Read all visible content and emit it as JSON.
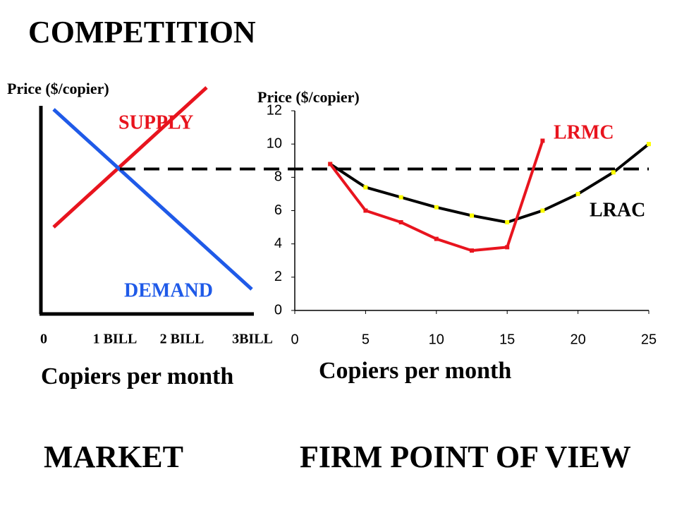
{
  "title": "COMPETITION",
  "market": {
    "y_label": "Price ($/copier)",
    "x_label": "Copiers per month",
    "x_labels": [
      "0",
      "1 BILL",
      "2 BILL",
      "3BILL"
    ],
    "supply_label": "SUPPLY",
    "demand_label": "DEMAND"
  },
  "captions": [
    "MARKET",
    "FIRM POINT OF VIEW"
  ],
  "chart_data": {
    "type": "line",
    "y_label": "Price ($/copier)",
    "x_label": "Copiers per month",
    "xlim": [
      0,
      25
    ],
    "xticks": [
      0,
      5,
      10,
      15,
      20,
      25
    ],
    "ylim": [
      0,
      12
    ],
    "yticks": [
      0,
      2,
      4,
      6,
      8,
      10,
      12
    ],
    "price_line": 8.5,
    "series": [
      {
        "name": "LRAC",
        "color": "#000000",
        "marker_color": "#ffff00",
        "x": [
          2.5,
          5,
          7.5,
          10,
          12.5,
          15,
          17.5,
          20,
          22.5,
          25
        ],
        "values": [
          8.8,
          7.4,
          6.8,
          6.2,
          5.7,
          5.3,
          6.0,
          7.0,
          8.3,
          10.0
        ]
      },
      {
        "name": "LRMC",
        "color": "#e8141e",
        "marker_color": "#e8141e",
        "x": [
          2.5,
          5,
          7.5,
          10,
          12.5,
          15,
          17.5
        ],
        "values": [
          8.8,
          6.0,
          5.3,
          4.3,
          3.6,
          3.8,
          10.2
        ]
      }
    ]
  }
}
